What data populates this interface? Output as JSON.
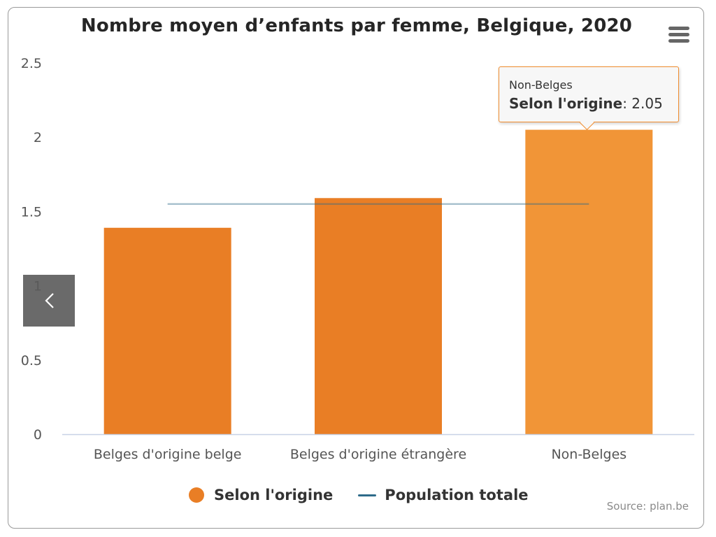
{
  "chart_data": {
    "type": "bar",
    "title": "Nombre moyen d’enfants par femme, Belgique, 2020",
    "categories": [
      "Belges d'origine belge",
      "Belges d'origine étrangère",
      "Non-Belges"
    ],
    "series": [
      {
        "name": "Selon l'origine",
        "type": "bar",
        "color": "#e97e25",
        "values": [
          1.39,
          1.59,
          2.05
        ]
      },
      {
        "name": "Population totale",
        "type": "line",
        "color": "#2e6b8a",
        "values": [
          1.55,
          1.55,
          1.55
        ]
      }
    ],
    "y_ticks": [
      "0",
      "0.5",
      "1",
      "1.5",
      "2",
      "2.5"
    ],
    "ylim": [
      0,
      2.5
    ],
    "grid": false,
    "legend_position": "bottom",
    "highlight_color": "#f19537",
    "tooltip": {
      "category": "Non-Belges",
      "series_label": "Selon l'origine",
      "separator": ": ",
      "value_text": "2.05"
    },
    "source": "Source: plan.be"
  },
  "ui": {
    "menu_icon": "hamburger-menu-icon",
    "nav_icon": "chevron-left-icon"
  }
}
